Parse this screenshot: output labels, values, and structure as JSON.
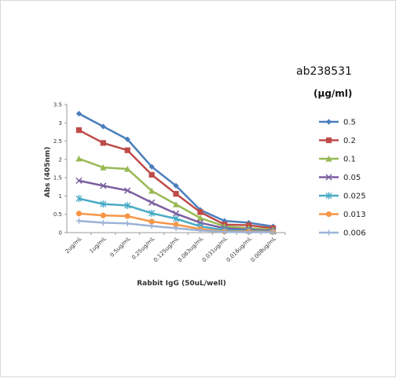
{
  "chart_data": {
    "type": "line",
    "title": "ab238531",
    "legend_title": "(µg/ml)",
    "xlabel": "Rabbit IgG  (50uL/well)",
    "ylabel": "Abs (405nm)",
    "ylim": [
      0,
      3.5
    ],
    "yticks": [
      "0",
      "0.5",
      "1",
      "1.5",
      "2",
      "2.5",
      "3",
      "3.5"
    ],
    "grid": false,
    "legend_position": "right",
    "categories": [
      "2ug/mL",
      "1ug/mL",
      "0.5ug/mL",
      "0.25ug/mL",
      "0.125ug/mL",
      "0.063ug/mL",
      "0.031ug/mL",
      "0.016ug/mL",
      "0.008ug/mL"
    ],
    "series": [
      {
        "name": "0.5",
        "color": "#4a7ebb",
        "marker": "diamond",
        "values": [
          3.25,
          2.9,
          2.55,
          1.8,
          1.28,
          0.62,
          0.32,
          0.27,
          0.17
        ]
      },
      {
        "name": "0.2",
        "color": "#be4b48",
        "marker": "square",
        "values": [
          2.8,
          2.45,
          2.25,
          1.58,
          1.06,
          0.56,
          0.22,
          0.2,
          0.12
        ]
      },
      {
        "name": "0.1",
        "color": "#98b954",
        "marker": "triangle",
        "values": [
          2.02,
          1.78,
          1.74,
          1.14,
          0.77,
          0.4,
          0.17,
          0.12,
          0.08
        ]
      },
      {
        "name": "0.05",
        "color": "#7d5fa0",
        "marker": "x",
        "values": [
          1.42,
          1.28,
          1.15,
          0.82,
          0.52,
          0.27,
          0.12,
          0.08,
          0.05
        ]
      },
      {
        "name": "0.025",
        "color": "#46aac5",
        "marker": "star",
        "values": [
          0.93,
          0.78,
          0.74,
          0.53,
          0.38,
          0.17,
          0.07,
          0.05,
          0.03
        ]
      },
      {
        "name": "0.013",
        "color": "#f79646",
        "marker": "circle",
        "values": [
          0.52,
          0.47,
          0.45,
          0.3,
          0.22,
          0.1,
          0.03,
          0.03,
          0.02
        ]
      },
      {
        "name": "0.006",
        "color": "#9cb3d6",
        "marker": "plus",
        "values": [
          0.32,
          0.27,
          0.25,
          0.18,
          0.12,
          0.06,
          0.02,
          0.01,
          0.01
        ]
      }
    ]
  }
}
